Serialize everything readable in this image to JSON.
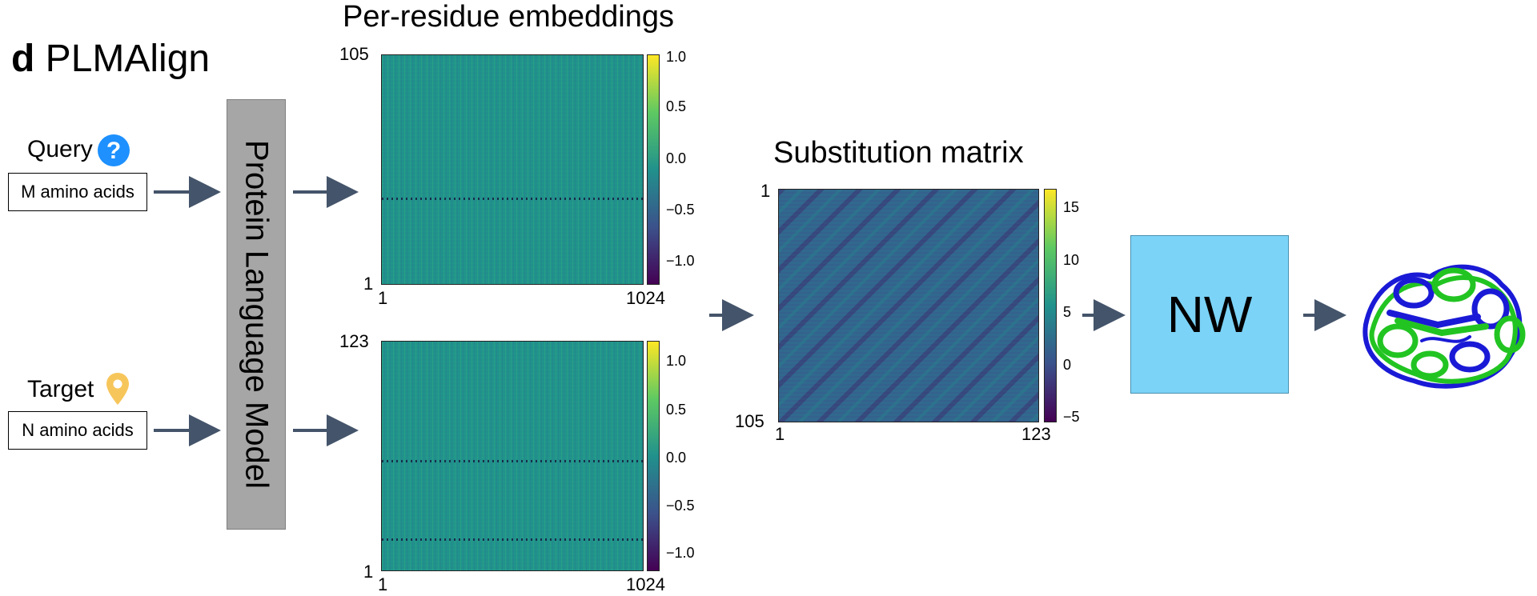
{
  "panel": {
    "letter": "d",
    "title": "PLMAlign"
  },
  "inputs": {
    "query_label": "Query",
    "query_box": "M amino acids",
    "target_label": "Target",
    "target_box": "N amino acids"
  },
  "model": {
    "label": "Protein Language Model"
  },
  "embeddings": {
    "title": "Per-residue embeddings",
    "query_heatmap": {
      "y_top": "105",
      "y_bottom": "1",
      "x_left": "1",
      "x_right": "1024",
      "colorbar": [
        "1.0",
        "0.5",
        "0.0",
        "−0.5",
        "−1.0"
      ]
    },
    "target_heatmap": {
      "y_top": "123",
      "y_bottom": "1",
      "x_left": "1",
      "x_right": "1024",
      "colorbar": [
        "1.0",
        "0.5",
        "0.0",
        "−0.5",
        "−1.0"
      ]
    }
  },
  "substitution": {
    "title": "Substitution matrix",
    "y_top": "1",
    "y_bottom": "105",
    "x_left": "1",
    "x_right": "123",
    "colorbar": [
      "15",
      "10",
      "5",
      "0",
      "−5"
    ]
  },
  "nw": {
    "label": "NW"
  },
  "colors": {
    "nw_box": "#7bd3f7",
    "plm_box": "#a6a6a6",
    "arrow": "#44546a",
    "query_icon": "#1e90ff",
    "target_icon": "#f7c65b",
    "structure_blue": "#1a1ad6",
    "structure_green": "#22c422"
  },
  "icons": [
    "question-icon",
    "location-pin-icon",
    "protein-structure-icon"
  ]
}
